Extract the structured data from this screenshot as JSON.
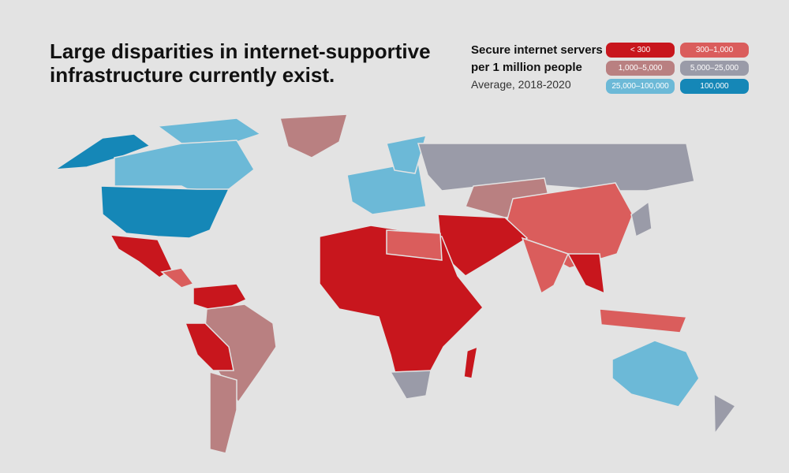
{
  "title": "Large disparities in internet-supportive infrastructure currently exist.",
  "legend": {
    "title": "Secure internet servers per 1 million people",
    "subtitle": "Average, 2018-2020",
    "items": [
      {
        "label": "< 300",
        "color": "#c8161d"
      },
      {
        "label": "300–1,000",
        "color": "#da5d5c"
      },
      {
        "label": "1,000–5,000",
        "color": "#b98081"
      },
      {
        "label": "5,000–25,000",
        "color": "#9a9ba8"
      },
      {
        "label": "25,000–100,000",
        "color": "#6cb9d7"
      },
      {
        "label": "100,000",
        "color": "#1587b7"
      }
    ]
  }
}
